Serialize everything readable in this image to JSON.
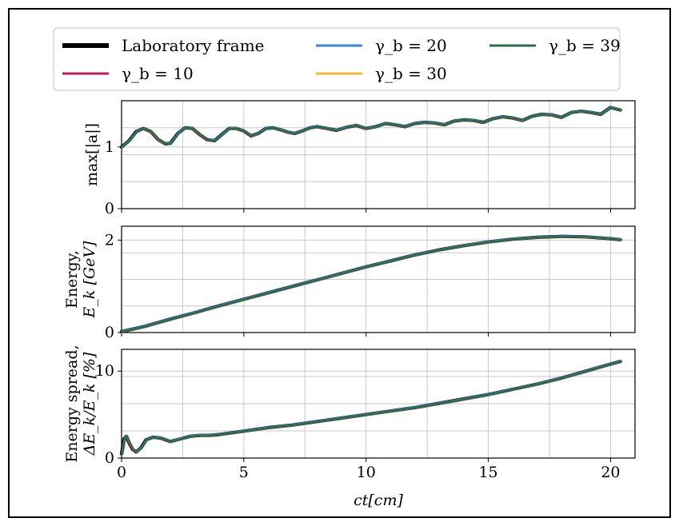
{
  "chart_data": {
    "type": "line",
    "legend": {
      "placement": "top",
      "entries": [
        {
          "label": "Laboratory frame",
          "color": "#000000"
        },
        {
          "label": "γ_b = 10",
          "color": "#c2185b"
        },
        {
          "label": "γ_b = 20",
          "color": "#3b82e6"
        },
        {
          "label": "γ_b = 30",
          "color": "#f5b731"
        },
        {
          "label": "γ_b = 39",
          "color": "#2e6b45"
        }
      ]
    },
    "xlabel": "ct[cm]",
    "xlim": [
      0,
      21
    ],
    "xticks": [
      0,
      5,
      10,
      15,
      20
    ],
    "grid": true,
    "panels": [
      {
        "ylabel": "max[|a|]",
        "ylim": [
          0,
          1.75
        ],
        "yticks": [
          0,
          1
        ],
        "x": [
          0,
          0.3,
          0.6,
          0.9,
          1.2,
          1.5,
          1.8,
          2.0,
          2.3,
          2.6,
          2.9,
          3.2,
          3.5,
          3.8,
          4.1,
          4.4,
          4.7,
          5.0,
          5.3,
          5.6,
          5.9,
          6.2,
          6.5,
          6.8,
          7.1,
          7.4,
          7.7,
          8.0,
          8.4,
          8.8,
          9.2,
          9.6,
          10.0,
          10.4,
          10.8,
          11.2,
          11.6,
          12.0,
          12.4,
          12.8,
          13.2,
          13.6,
          14.0,
          14.4,
          14.8,
          15.2,
          15.6,
          16.0,
          16.4,
          16.8,
          17.2,
          17.6,
          18.0,
          18.4,
          18.8,
          19.2,
          19.6,
          20.0,
          20.4
        ],
        "series": [
          {
            "values": [
              1.0,
              1.1,
              1.25,
              1.3,
              1.25,
              1.12,
              1.05,
              1.06,
              1.22,
              1.31,
              1.3,
              1.2,
              1.12,
              1.1,
              1.2,
              1.3,
              1.3,
              1.26,
              1.18,
              1.22,
              1.3,
              1.31,
              1.28,
              1.24,
              1.22,
              1.26,
              1.31,
              1.33,
              1.3,
              1.27,
              1.32,
              1.35,
              1.3,
              1.33,
              1.38,
              1.36,
              1.33,
              1.38,
              1.4,
              1.39,
              1.36,
              1.42,
              1.44,
              1.43,
              1.4,
              1.46,
              1.49,
              1.47,
              1.43,
              1.5,
              1.53,
              1.52,
              1.48,
              1.56,
              1.58,
              1.56,
              1.53,
              1.64,
              1.6
            ]
          }
        ]
      },
      {
        "ylabel": "Energy, E_k [GeV]",
        "ylim": [
          0,
          2.3
        ],
        "yticks": [
          0,
          2
        ],
        "x": [
          0,
          1,
          2,
          3,
          4,
          5,
          6,
          7,
          8,
          9,
          10,
          11,
          12,
          13,
          14,
          15,
          16,
          17,
          18,
          19,
          20,
          20.4
        ],
        "series": [
          {
            "values": [
              0.02,
              0.14,
              0.29,
              0.43,
              0.58,
              0.72,
              0.86,
              1.0,
              1.14,
              1.28,
              1.42,
              1.55,
              1.68,
              1.79,
              1.88,
              1.96,
              2.02,
              2.06,
              2.08,
              2.07,
              2.03,
              2.01
            ]
          }
        ]
      },
      {
        "ylabel": "Energy spread, ΔE_k/E_k [%]",
        "ylim": [
          0,
          12.5
        ],
        "yticks": [
          0,
          10
        ],
        "x": [
          0,
          0.1,
          0.2,
          0.3,
          0.45,
          0.6,
          0.8,
          1.0,
          1.3,
          1.6,
          2.0,
          2.4,
          2.8,
          3.2,
          3.6,
          4.0,
          4.5,
          5.0,
          6,
          7,
          8,
          9,
          10,
          11,
          12,
          13,
          14,
          15,
          16,
          17,
          18,
          19,
          20,
          20.4
        ],
        "series": [
          {
            "values": [
              0.5,
              2.2,
              2.5,
              1.8,
              1.0,
              0.7,
              1.2,
              2.1,
              2.4,
              2.3,
              1.9,
              2.2,
              2.5,
              2.6,
              2.6,
              2.7,
              2.9,
              3.1,
              3.5,
              3.8,
              4.2,
              4.6,
              5.0,
              5.4,
              5.8,
              6.3,
              6.8,
              7.3,
              7.9,
              8.5,
              9.2,
              10.0,
              10.8,
              11.1
            ]
          }
        ]
      }
    ]
  }
}
